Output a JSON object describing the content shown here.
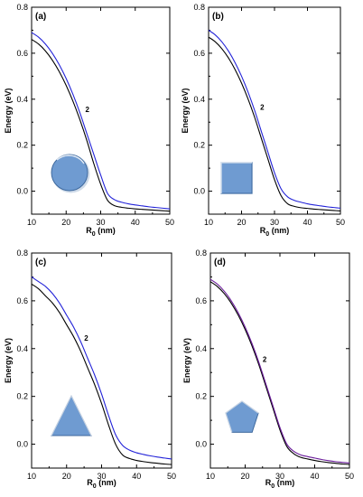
{
  "chart_data": [
    {
      "type": "line",
      "panel_label": "(a)",
      "shape_icon": "circle-icon",
      "xlabel": "R0 (nm)",
      "xlabel_main": "R",
      "xlabel_sub": "0",
      "xlabel_unit": " (nm)",
      "ylabel": "Energy (eV)",
      "xlim": [
        10,
        50
      ],
      "ylim": [
        -0.1,
        0.8
      ],
      "xticks": [
        "10",
        "20",
        "30",
        "40",
        "50"
      ],
      "yticks": [
        "0.0",
        "0.2",
        "0.4",
        "0.6",
        "0.8"
      ],
      "curve_label": "2",
      "series": [
        {
          "color": "#000000",
          "x": [
            10,
            12,
            14,
            16,
            18,
            20,
            22,
            24,
            26,
            28,
            30,
            32,
            34,
            36,
            38,
            40,
            42,
            44,
            46,
            48,
            50
          ],
          "y": [
            0.66,
            0.64,
            0.61,
            0.57,
            0.52,
            0.46,
            0.39,
            0.31,
            0.22,
            0.12,
            0.03,
            -0.04,
            -0.063,
            -0.07,
            -0.074,
            -0.077,
            -0.079,
            -0.081,
            -0.083,
            -0.085,
            -0.087
          ]
        },
        {
          "color": "#2323d8",
          "x": [
            10,
            12,
            14,
            16,
            18,
            20,
            22,
            24,
            26,
            28,
            30,
            32,
            34,
            36,
            38,
            40,
            42,
            44,
            46,
            48,
            50
          ],
          "y": [
            0.69,
            0.67,
            0.64,
            0.6,
            0.55,
            0.49,
            0.42,
            0.34,
            0.25,
            0.16,
            0.07,
            -0.01,
            -0.037,
            -0.048,
            -0.055,
            -0.06,
            -0.064,
            -0.068,
            -0.071,
            -0.074,
            -0.077
          ]
        }
      ]
    },
    {
      "type": "line",
      "panel_label": "(b)",
      "shape_icon": "square-icon",
      "xlabel": "R0 (nm)",
      "xlabel_main": "R",
      "xlabel_sub": "0",
      "xlabel_unit": " (nm)",
      "ylabel": "Energy (eV)",
      "xlim": [
        10,
        50
      ],
      "ylim": [
        -0.1,
        0.8
      ],
      "xticks": [
        "10",
        "20",
        "30",
        "40",
        "50"
      ],
      "yticks": [
        "0.0",
        "0.2",
        "0.4",
        "0.6",
        "0.8"
      ],
      "curve_label": "2",
      "series": [
        {
          "color": "#000000",
          "x": [
            10,
            12,
            14,
            16,
            18,
            20,
            22,
            24,
            26,
            28,
            30,
            32,
            34,
            36,
            38,
            40,
            42,
            44,
            46,
            48,
            50
          ],
          "y": [
            0.67,
            0.65,
            0.62,
            0.58,
            0.53,
            0.47,
            0.4,
            0.32,
            0.23,
            0.14,
            0.05,
            -0.02,
            -0.055,
            -0.066,
            -0.072,
            -0.075,
            -0.078,
            -0.08,
            -0.082,
            -0.084,
            -0.086
          ]
        },
        {
          "color": "#2323d8",
          "x": [
            10,
            12,
            14,
            16,
            18,
            20,
            22,
            24,
            26,
            28,
            30,
            32,
            34,
            36,
            38,
            40,
            42,
            44,
            46,
            48,
            50
          ],
          "y": [
            0.7,
            0.68,
            0.65,
            0.61,
            0.56,
            0.5,
            0.43,
            0.35,
            0.26,
            0.17,
            0.08,
            0.01,
            -0.025,
            -0.04,
            -0.048,
            -0.055,
            -0.06,
            -0.064,
            -0.068,
            -0.071,
            -0.074
          ]
        }
      ]
    },
    {
      "type": "line",
      "panel_label": "(c)",
      "shape_icon": "triangle-icon",
      "xlabel": "R0 (nm)",
      "xlabel_main": "R",
      "xlabel_sub": "0",
      "xlabel_unit": " (nm)",
      "ylabel": "Energy (eV)",
      "xlim": [
        10,
        50
      ],
      "ylim": [
        -0.1,
        0.8
      ],
      "xticks": [
        "10",
        "20",
        "30",
        "40",
        "50"
      ],
      "yticks": [
        "0.0",
        "0.2",
        "0.4",
        "0.6",
        "0.8"
      ],
      "curve_label": "2",
      "series": [
        {
          "color": "#000000",
          "x": [
            10,
            12,
            14,
            16,
            18,
            20,
            22,
            24,
            26,
            28,
            30,
            32,
            34,
            36,
            38,
            40,
            42,
            44,
            46,
            48,
            50
          ],
          "y": [
            0.67,
            0.65,
            0.62,
            0.59,
            0.55,
            0.5,
            0.45,
            0.39,
            0.32,
            0.25,
            0.17,
            0.08,
            0.0,
            -0.045,
            -0.06,
            -0.068,
            -0.073,
            -0.077,
            -0.08,
            -0.083,
            -0.085
          ]
        },
        {
          "color": "#2323d8",
          "x": [
            10,
            12,
            14,
            16,
            18,
            20,
            22,
            24,
            26,
            28,
            30,
            32,
            34,
            36,
            38,
            40,
            42,
            44,
            46,
            48,
            50
          ],
          "y": [
            0.7,
            0.68,
            0.66,
            0.63,
            0.59,
            0.54,
            0.49,
            0.43,
            0.36,
            0.29,
            0.21,
            0.12,
            0.04,
            -0.005,
            -0.025,
            -0.036,
            -0.043,
            -0.049,
            -0.054,
            -0.058,
            -0.062
          ]
        }
      ]
    },
    {
      "type": "line",
      "panel_label": "(d)",
      "shape_icon": "pentagon-icon",
      "xlabel": "R0 (nm)",
      "xlabel_main": "R",
      "xlabel_sub": "0",
      "xlabel_unit": " (nm)",
      "ylabel": "Energy (eV)",
      "xlim": [
        10,
        50
      ],
      "ylim": [
        -0.1,
        0.8
      ],
      "xticks": [
        "10",
        "20",
        "30",
        "40",
        "50"
      ],
      "yticks": [
        "0.0",
        "0.2",
        "0.4",
        "0.6",
        "0.8"
      ],
      "curve_label": "2",
      "series": [
        {
          "color": "#000000",
          "x": [
            10,
            12,
            14,
            16,
            18,
            20,
            22,
            24,
            26,
            28,
            30,
            32,
            34,
            36,
            38,
            40,
            42,
            44,
            46,
            48,
            50
          ],
          "y": [
            0.68,
            0.66,
            0.63,
            0.59,
            0.54,
            0.48,
            0.41,
            0.33,
            0.24,
            0.15,
            0.06,
            -0.01,
            -0.04,
            -0.055,
            -0.062,
            -0.068,
            -0.073,
            -0.077,
            -0.08,
            -0.083,
            -0.085
          ]
        },
        {
          "color": "#6a1b9a",
          "x": [
            10,
            12,
            14,
            16,
            18,
            20,
            22,
            24,
            26,
            28,
            30,
            32,
            34,
            36,
            38,
            40,
            42,
            44,
            46,
            48,
            50
          ],
          "y": [
            0.69,
            0.67,
            0.64,
            0.6,
            0.55,
            0.49,
            0.42,
            0.34,
            0.25,
            0.16,
            0.07,
            0.0,
            -0.03,
            -0.045,
            -0.052,
            -0.058,
            -0.064,
            -0.069,
            -0.073,
            -0.076,
            -0.079
          ]
        }
      ]
    }
  ]
}
